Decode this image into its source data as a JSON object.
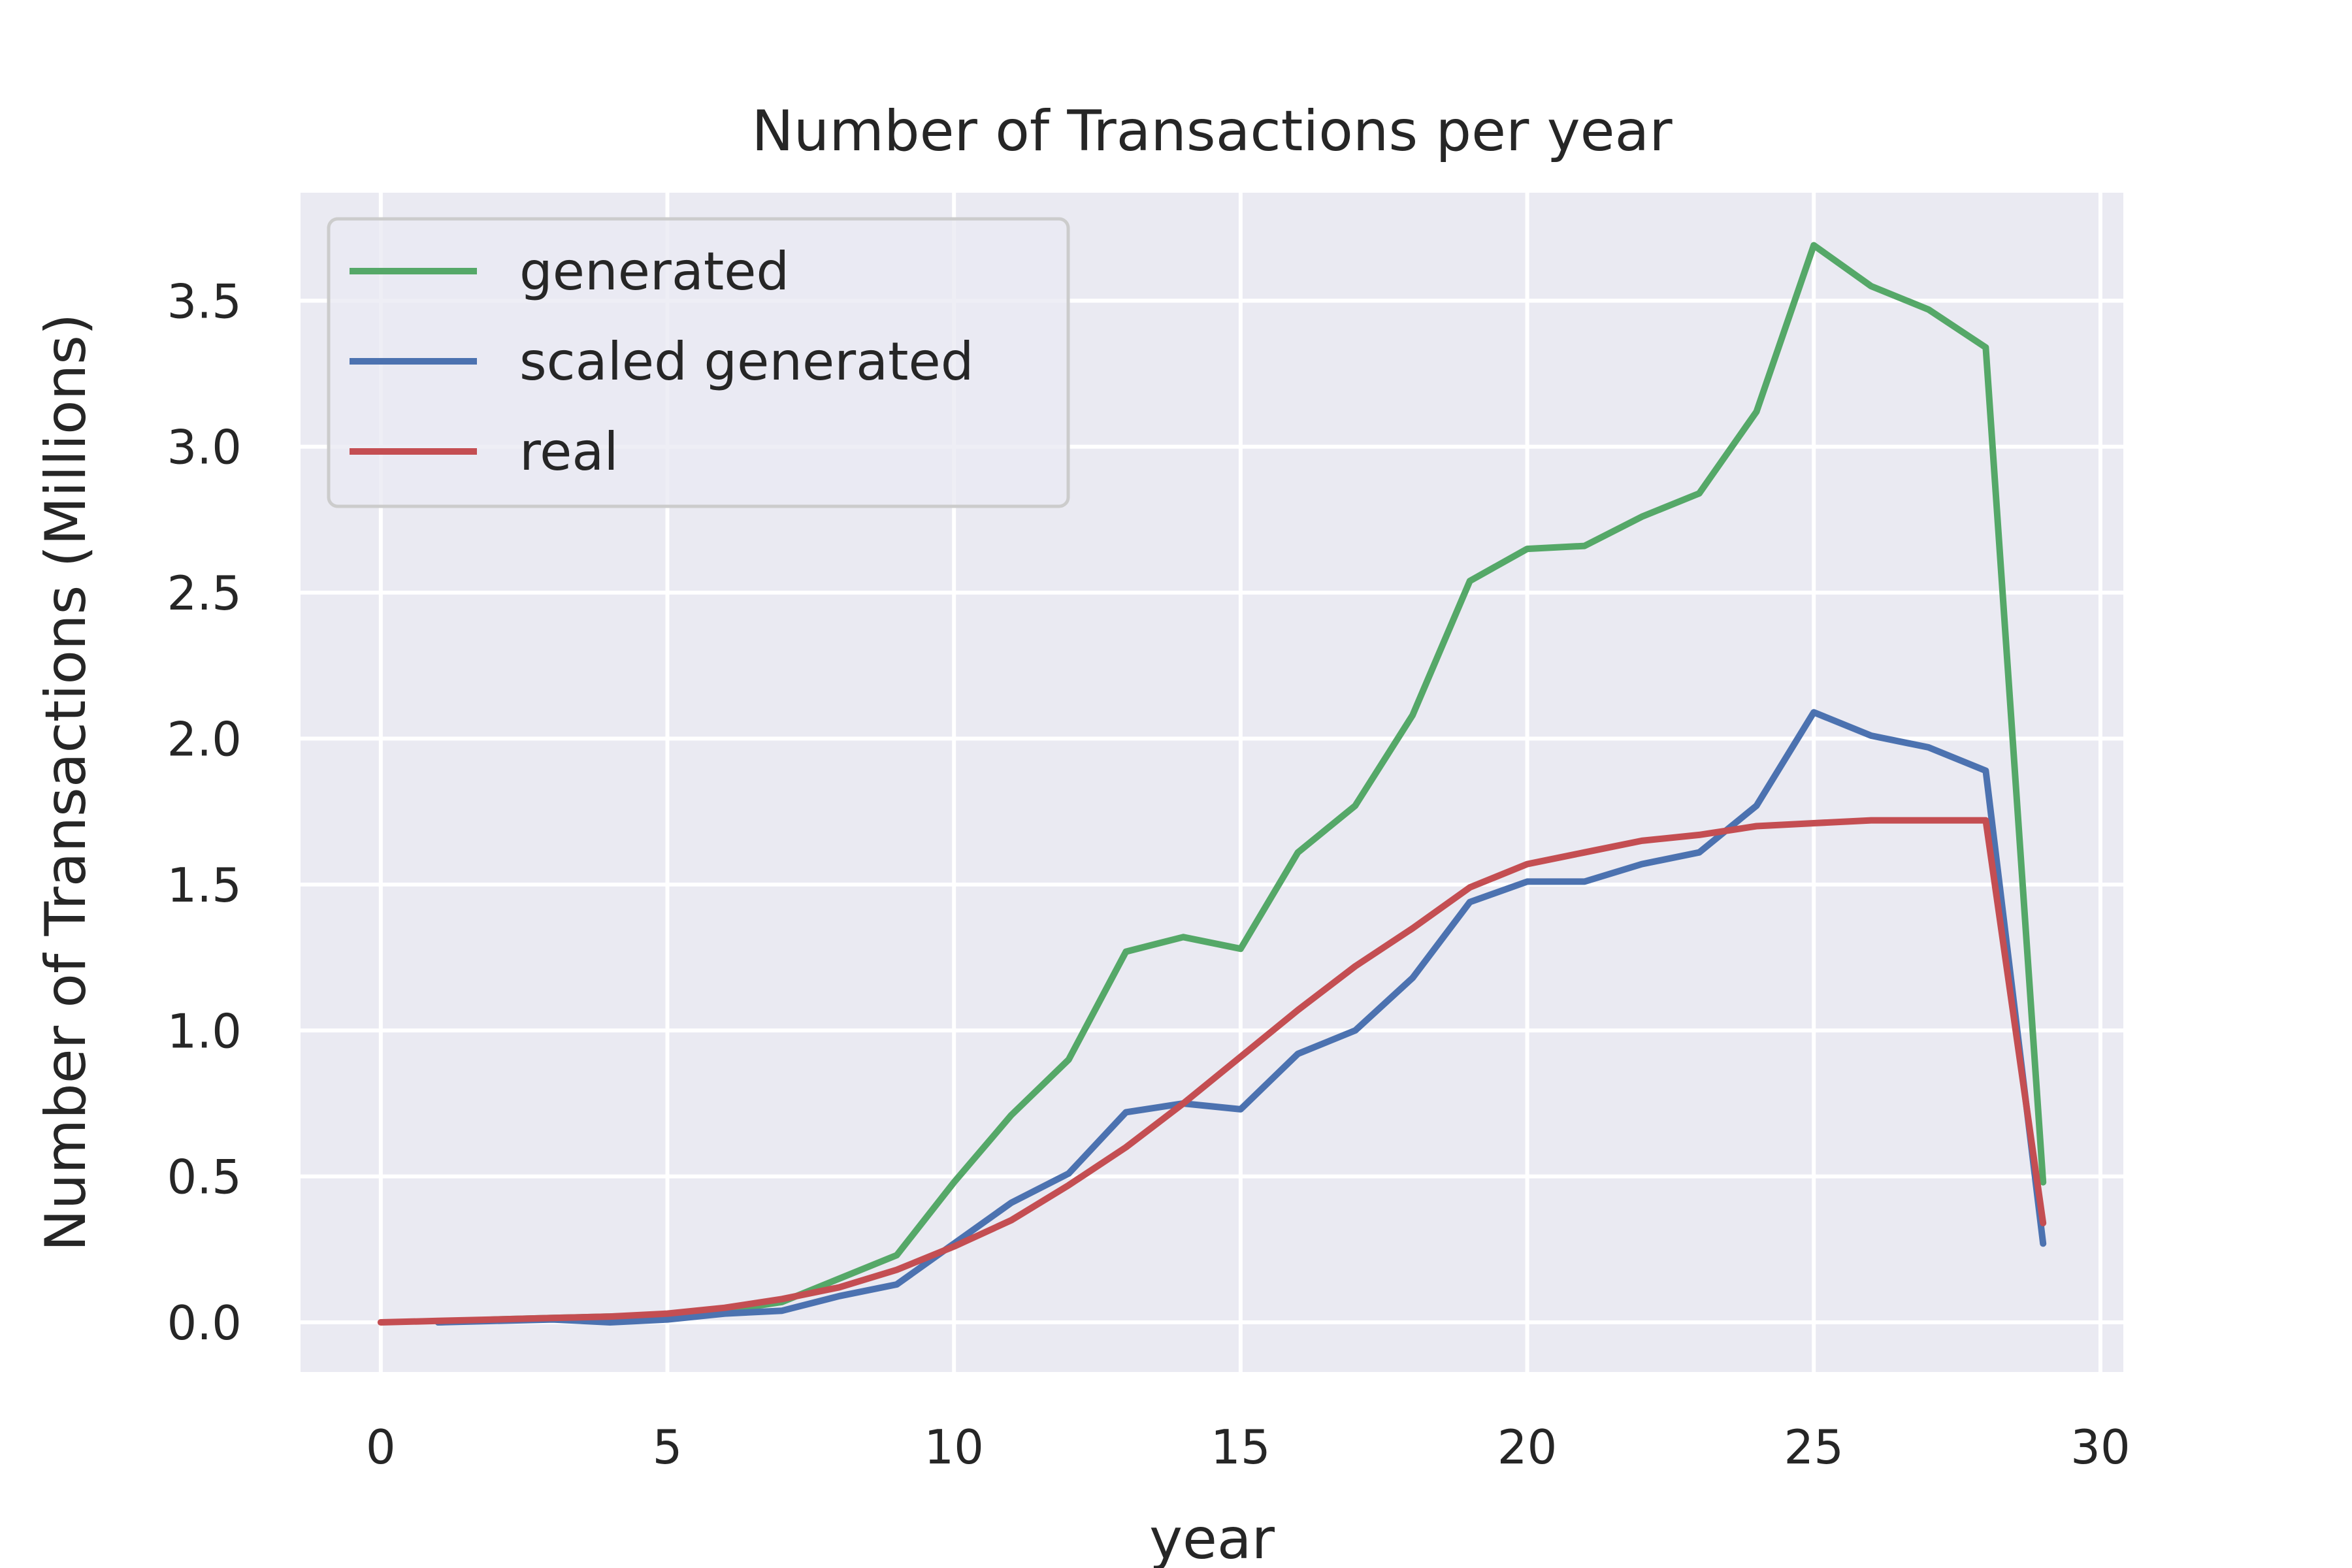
{
  "chart_data": {
    "type": "line",
    "title": "Number of Transactions per year",
    "xlabel": "year",
    "ylabel": "Number of Transactions (Millions)",
    "xlim": [
      -1.4,
      30.4
    ],
    "ylim": [
      -0.17,
      3.87
    ],
    "xticks": [
      0,
      5,
      10,
      15,
      20,
      25,
      30
    ],
    "yticks": [
      0.0,
      0.5,
      1.0,
      1.5,
      2.0,
      2.5,
      3.0,
      3.5
    ],
    "xtick_labels": [
      "0",
      "5",
      "10",
      "15",
      "20",
      "25",
      "30"
    ],
    "ytick_labels": [
      "0.0",
      "0.5",
      "1.0",
      "1.5",
      "2.0",
      "2.5",
      "3.0",
      "3.5"
    ],
    "grid": true,
    "legend_position": "upper-left",
    "series": [
      {
        "name": "generated",
        "color": "#55a868",
        "x": [
          1,
          2,
          3,
          4,
          5,
          6,
          7,
          8,
          9,
          10,
          11,
          12,
          13,
          14,
          15,
          16,
          17,
          18,
          19,
          20,
          21,
          22,
          23,
          24,
          25,
          26,
          27,
          28,
          29
        ],
        "values": [
          0.0,
          0.01,
          0.015,
          0.02,
          0.025,
          0.04,
          0.07,
          0.15,
          0.23,
          0.48,
          0.71,
          0.9,
          1.27,
          1.32,
          1.28,
          1.61,
          1.77,
          2.08,
          2.54,
          2.65,
          2.66,
          2.76,
          2.84,
          3.12,
          3.69,
          3.55,
          3.47,
          3.34,
          0.48
        ]
      },
      {
        "name": "scaled generated",
        "color": "#4c72b0",
        "x": [
          1,
          2,
          3,
          4,
          5,
          6,
          7,
          8,
          9,
          10,
          11,
          12,
          13,
          14,
          15,
          16,
          17,
          18,
          19,
          20,
          21,
          22,
          23,
          24,
          25,
          26,
          27,
          28,
          29
        ],
        "values": [
          0.0,
          0.005,
          0.01,
          0.0,
          0.01,
          0.03,
          0.04,
          0.09,
          0.13,
          0.27,
          0.41,
          0.51,
          0.72,
          0.75,
          0.73,
          0.92,
          1.0,
          1.18,
          1.44,
          1.51,
          1.51,
          1.57,
          1.61,
          1.77,
          2.09,
          2.01,
          1.97,
          1.89,
          0.27
        ]
      },
      {
        "name": "real",
        "color": "#c44e52",
        "x": [
          0,
          1,
          2,
          3,
          4,
          5,
          6,
          7,
          8,
          9,
          10,
          11,
          12,
          13,
          14,
          15,
          16,
          17,
          18,
          19,
          20,
          21,
          22,
          23,
          24,
          25,
          26,
          27,
          28,
          29
        ],
        "values": [
          0.0,
          0.005,
          0.01,
          0.015,
          0.02,
          0.03,
          0.05,
          0.08,
          0.12,
          0.18,
          0.26,
          0.35,
          0.47,
          0.6,
          0.75,
          0.91,
          1.07,
          1.22,
          1.35,
          1.49,
          1.57,
          1.61,
          1.65,
          1.67,
          1.7,
          1.71,
          1.72,
          1.72,
          1.72,
          0.34
        ]
      }
    ]
  }
}
